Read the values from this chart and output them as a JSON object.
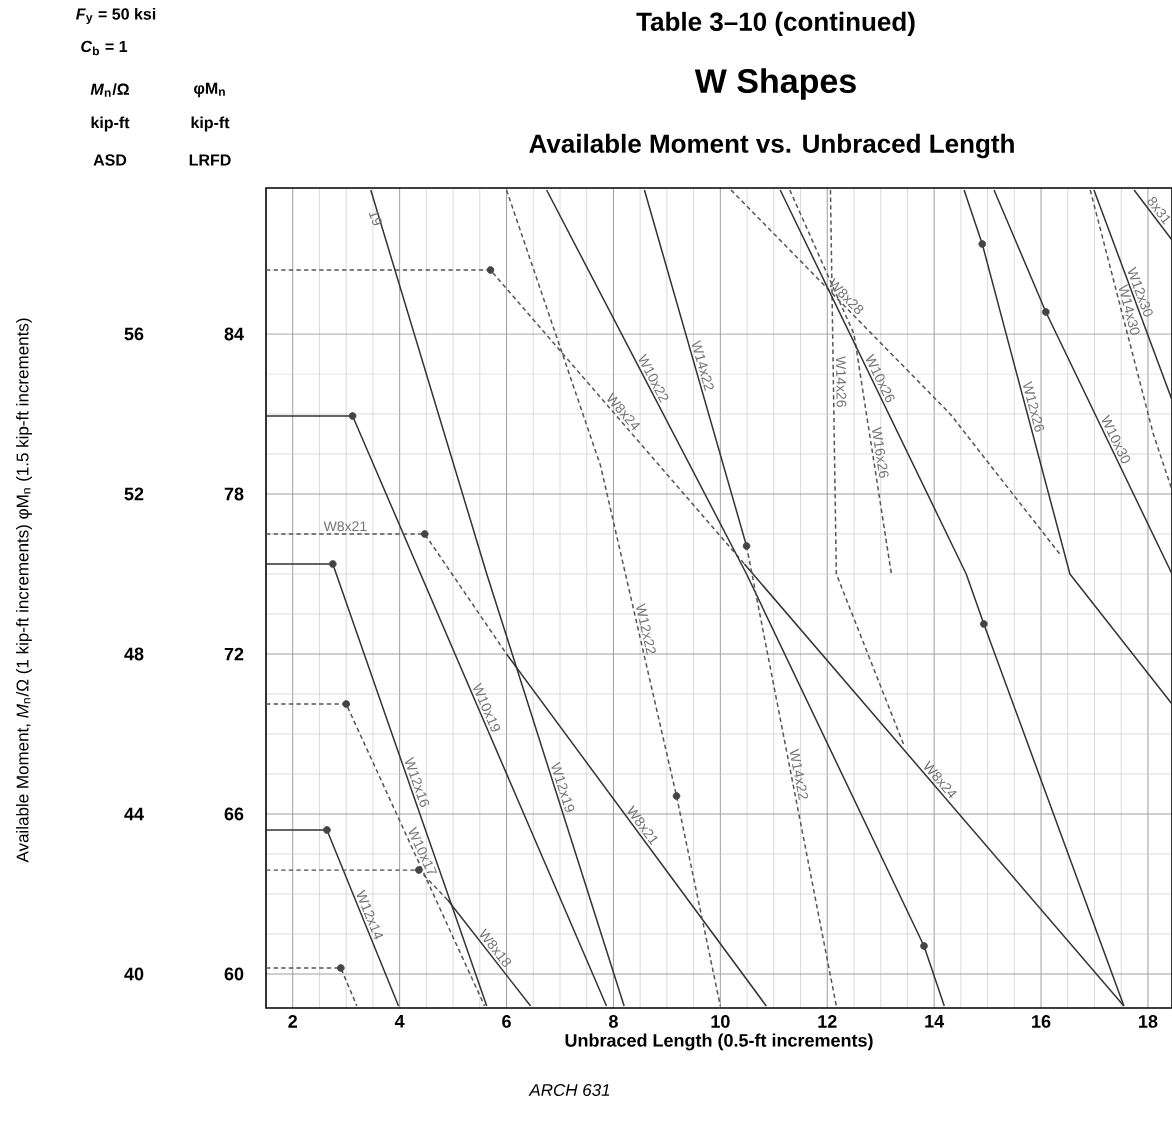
{
  "chart_data": {
    "type": "line",
    "title": "W Shapes",
    "subtitle": "Available Moment vs. Unbraced Length",
    "xlabel": "Unbraced Length (0.5-ft increments)",
    "xlim": [
      1.5,
      18.45
    ],
    "ylim": [
      39.15,
      59.65
    ],
    "y2lim": [
      58.725,
      89.475
    ],
    "xticks": [
      2,
      4,
      6,
      8,
      10,
      12,
      14,
      16,
      18
    ],
    "yticks": [
      40,
      44,
      48,
      52,
      56
    ],
    "y2ticks": [
      60,
      66,
      72,
      78,
      84
    ],
    "grid": true,
    "annotations": [
      "Table 3–10 (continued)",
      "*F*$_{y}$ = 50 ksi",
      "*C*$_{b}$ = 1",
      "*M*$_{n}$/Ω",
      "φM$_{n}$",
      "kip-ft",
      "kip-ft",
      "ASD",
      "LRFD",
      "ARCH 631",
      "Available Moment, *M*$_{n}$/Ω (1 kip-ft increments) φM$_{n}$ (1.5 kip-ft increments)",
      {
        "text": "19",
        "x": 3.55,
        "y": 58.9
      }
    ],
    "series": [
      {
        "name": "W8x24",
        "color": "#555555",
        "line_style": "dashed",
        "x": [
          1.5,
          5.7,
          10.45
        ],
        "values": [
          57.6,
          57.6,
          50.25
        ]
      },
      {
        "name": "W8x24",
        "color": "#333333",
        "line_style": "solid",
        "x": [
          10.45,
          17.55
        ],
        "values": [
          50.25,
          39.2
        ]
      },
      {
        "name": "W10x19",
        "color": "#333333",
        "line_style": "solid",
        "x": [
          1.5,
          3.12,
          7.87
        ],
        "values": [
          53.95,
          53.95,
          39.2
        ]
      },
      {
        "name": "W8x21",
        "color": "#555555",
        "line_style": "dashed",
        "x": [
          1.5,
          4.47,
          6.0
        ],
        "values": [
          51.0,
          51.0,
          48.0
        ]
      },
      {
        "name": "W8x21",
        "color": "#333333",
        "line_style": "solid",
        "x": [
          6.0,
          10.86
        ],
        "values": [
          48.0,
          39.2
        ]
      },
      {
        "name": "W12x22",
        "color": "#555555",
        "line_style": "dashed",
        "x": [
          6.0,
          7.76,
          9.18,
          10.0
        ],
        "values": [
          59.6,
          52.7,
          44.45,
          39.2
        ]
      },
      {
        "name": "W10x22",
        "color": "#333333",
        "line_style": "solid",
        "x": [
          6.75,
          10.49,
          13.81,
          14.19
        ],
        "values": [
          59.6,
          50.0,
          40.7,
          39.2
        ]
      },
      {
        "name": "W14x22",
        "color": "#333333",
        "line_style": "solid",
        "x": [
          8.58,
          10.49
        ],
        "values": [
          59.6,
          50.7
        ]
      },
      {
        "name": "W14x22",
        "color": "#555555",
        "line_style": "dashed",
        "x": [
          10.49,
          12.17
        ],
        "values": [
          50.7,
          39.2
        ]
      },
      {
        "name": "W14x26",
        "color": "#555555",
        "line_style": "dashed",
        "x": [
          12.06,
          12.17,
          13.44
        ],
        "values": [
          59.6,
          50.0,
          45.7
        ]
      },
      {
        "name": "W16x26",
        "color": "#555555",
        "line_style": "dashed",
        "x": [
          11.3,
          12.5,
          13.2
        ],
        "values": [
          59.6,
          56.0,
          50.0
        ]
      },
      {
        "name": "W8x28",
        "color": "#555555",
        "line_style": "dashed",
        "x": [
          10.2,
          14.3,
          16.35
        ],
        "values": [
          59.6,
          54.0,
          50.5
        ]
      },
      {
        "name": "W10x26",
        "color": "#333333",
        "line_style": "solid",
        "x": [
          11.12,
          14.6,
          14.93,
          17.55
        ],
        "values": [
          59.6,
          50.0,
          48.75,
          39.2
        ]
      },
      {
        "name": "W12x26",
        "color": "#333333",
        "line_style": "solid",
        "x": [
          14.56,
          14.9,
          16.54,
          18.45
        ],
        "values": [
          59.6,
          58.25,
          50.0,
          46.75
        ]
      },
      {
        "name": "W10x30",
        "color": "#333333",
        "line_style": "solid",
        "x": [
          15.12,
          16.09,
          18.45
        ],
        "values": [
          59.6,
          56.55,
          50.0
        ]
      },
      {
        "name": "W14x30",
        "color": "#555555",
        "line_style": "dashed",
        "x": [
          16.92,
          18.1,
          18.45
        ],
        "values": [
          59.6,
          53.5,
          52.1
        ]
      },
      {
        "name": "W12x30",
        "color": "#333333",
        "line_style": "solid",
        "x": [
          16.99,
          18.45
        ],
        "values": [
          59.6,
          54.35
        ]
      },
      {
        "name": "8x31",
        "color": "#333333",
        "line_style": "solid",
        "x": [
          17.74,
          18.45
        ],
        "values": [
          59.6,
          58.35
        ]
      },
      {
        "name": "W12x19",
        "color": "#333333",
        "line_style": "solid",
        "x": [
          3.46,
          5.63,
          8.2
        ],
        "values": [
          59.6,
          50.0,
          39.2
        ]
      },
      {
        "name": "W12x16",
        "color": "#333333",
        "line_style": "solid",
        "x": [
          1.5,
          2.75,
          5.63
        ],
        "values": [
          50.25,
          50.25,
          39.2
        ]
      },
      {
        "name": "W10x17",
        "color": "#555555",
        "line_style": "dashed",
        "x": [
          1.5,
          3.0,
          5.59
        ],
        "values": [
          46.75,
          46.75,
          39.2
        ]
      },
      {
        "name": "W12x14",
        "color": "#333333",
        "line_style": "solid",
        "x": [
          1.5,
          2.64,
          3.98
        ],
        "values": [
          43.6,
          43.6,
          39.2
        ]
      },
      {
        "color": "#555555",
        "line_style": "dashed",
        "x": [
          1.5,
          4.36,
          4.9
        ],
        "values": [
          42.6,
          42.6,
          41.85
        ]
      },
      {
        "name": "W8x18",
        "color": "#333333",
        "line_style": "solid",
        "x": [
          4.9,
          6.45
        ],
        "values": [
          41.85,
          39.2
        ]
      },
      {
        "color": "#555555",
        "line_style": "dashed",
        "x": [
          1.5,
          2.9,
          3.2
        ],
        "values": [
          40.15,
          40.15,
          39.2
        ]
      },
      {
        "type": "scatter",
        "marker": "circle",
        "color": "#444444",
        "x": [
          5.7,
          3.12,
          4.47,
          2.75,
          3.0,
          2.64,
          4.36,
          2.9,
          10.49,
          9.18,
          13.81,
          14.93,
          14.9,
          16.09
        ],
        "values": [
          57.6,
          53.95,
          51.0,
          50.25,
          46.75,
          43.6,
          42.6,
          40.15,
          50.7,
          44.45,
          40.7,
          48.75,
          58.25,
          56.55
        ]
      }
    ]
  }
}
